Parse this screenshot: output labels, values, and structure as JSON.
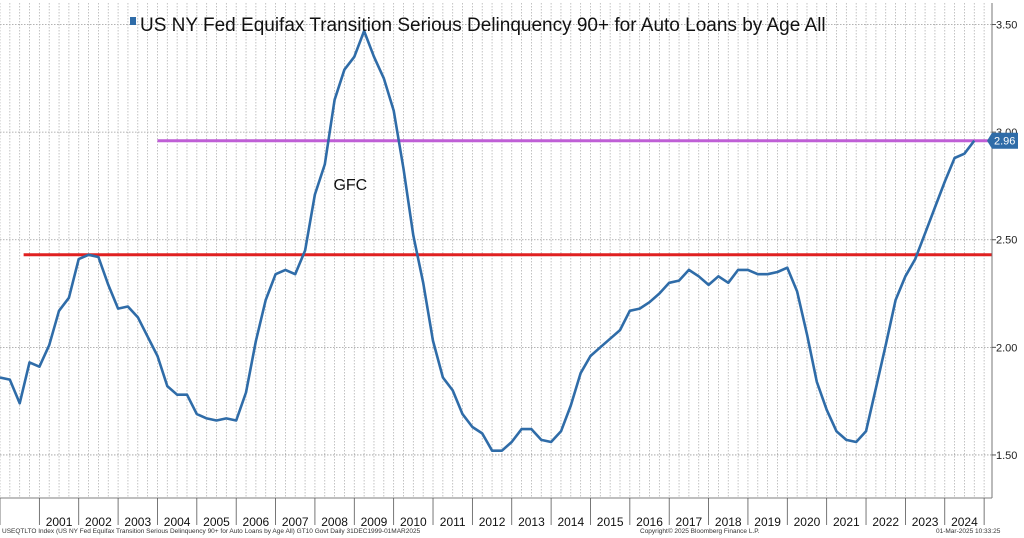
{
  "chart_data": {
    "type": "line",
    "title": "US NY Fed Equifax Transition Serious Delinquency 90+ for Auto Loans by Age All",
    "legend_position": "top",
    "xlabel": "",
    "ylabel": "",
    "x_axis": "quarterly",
    "x_range": [
      2000.0,
      2025.2
    ],
    "ylim": [
      1.3,
      3.6
    ],
    "ytick_labels": [
      "1.50",
      "2.00",
      "2.50",
      "3.00",
      "3.50"
    ],
    "ytick_values": [
      1.5,
      2.0,
      2.5,
      3.0,
      3.5
    ],
    "xtick_labels": [
      "2001",
      "2002",
      "2003",
      "2004",
      "2005",
      "2006",
      "2007",
      "2008",
      "2009",
      "2010",
      "2011",
      "2012",
      "2013",
      "2014",
      "2015",
      "2016",
      "2017",
      "2018",
      "2019",
      "2020",
      "2021",
      "2022",
      "2023",
      "2024"
    ],
    "y_axis_side": "right",
    "grid": true,
    "series": [
      {
        "name": "US NY Fed Equifax Transition Serious Delinquency 90+ for Auto Loans by Age All",
        "color": "#2f6ca8",
        "last_value_label": "2.96",
        "points": [
          [
            2000.0,
            1.86
          ],
          [
            2000.25,
            1.85
          ],
          [
            2000.5,
            1.74
          ],
          [
            2000.75,
            1.93
          ],
          [
            2001.0,
            1.91
          ],
          [
            2001.25,
            2.01
          ],
          [
            2001.5,
            2.17
          ],
          [
            2001.75,
            2.23
          ],
          [
            2002.0,
            2.41
          ],
          [
            2002.25,
            2.43
          ],
          [
            2002.5,
            2.42
          ],
          [
            2002.75,
            2.29
          ],
          [
            2003.0,
            2.18
          ],
          [
            2003.25,
            2.19
          ],
          [
            2003.5,
            2.14
          ],
          [
            2003.75,
            2.05
          ],
          [
            2004.0,
            1.96
          ],
          [
            2004.25,
            1.82
          ],
          [
            2004.5,
            1.78
          ],
          [
            2004.75,
            1.78
          ],
          [
            2005.0,
            1.69
          ],
          [
            2005.25,
            1.67
          ],
          [
            2005.5,
            1.66
          ],
          [
            2005.75,
            1.67
          ],
          [
            2006.0,
            1.66
          ],
          [
            2006.25,
            1.79
          ],
          [
            2006.5,
            2.03
          ],
          [
            2006.75,
            2.22
          ],
          [
            2007.0,
            2.34
          ],
          [
            2007.25,
            2.36
          ],
          [
            2007.5,
            2.34
          ],
          [
            2007.75,
            2.45
          ],
          [
            2008.0,
            2.71
          ],
          [
            2008.25,
            2.85
          ],
          [
            2008.5,
            3.15
          ],
          [
            2008.75,
            3.29
          ],
          [
            2009.0,
            3.35
          ],
          [
            2009.25,
            3.47
          ],
          [
            2009.5,
            3.35
          ],
          [
            2009.75,
            3.25
          ],
          [
            2010.0,
            3.1
          ],
          [
            2010.25,
            2.83
          ],
          [
            2010.5,
            2.52
          ],
          [
            2010.75,
            2.3
          ],
          [
            2011.0,
            2.03
          ],
          [
            2011.25,
            1.86
          ],
          [
            2011.5,
            1.8
          ],
          [
            2011.75,
            1.69
          ],
          [
            2012.0,
            1.63
          ],
          [
            2012.25,
            1.6
          ],
          [
            2012.5,
            1.52
          ],
          [
            2012.75,
            1.52
          ],
          [
            2013.0,
            1.56
          ],
          [
            2013.25,
            1.62
          ],
          [
            2013.5,
            1.62
          ],
          [
            2013.75,
            1.57
          ],
          [
            2014.0,
            1.56
          ],
          [
            2014.25,
            1.61
          ],
          [
            2014.5,
            1.73
          ],
          [
            2014.75,
            1.88
          ],
          [
            2015.0,
            1.96
          ],
          [
            2015.25,
            2.0
          ],
          [
            2015.5,
            2.04
          ],
          [
            2015.75,
            2.08
          ],
          [
            2016.0,
            2.17
          ],
          [
            2016.25,
            2.18
          ],
          [
            2016.5,
            2.21
          ],
          [
            2016.75,
            2.25
          ],
          [
            2017.0,
            2.3
          ],
          [
            2017.25,
            2.31
          ],
          [
            2017.5,
            2.36
          ],
          [
            2017.75,
            2.33
          ],
          [
            2018.0,
            2.29
          ],
          [
            2018.25,
            2.33
          ],
          [
            2018.5,
            2.3
          ],
          [
            2018.75,
            2.36
          ],
          [
            2019.0,
            2.36
          ],
          [
            2019.25,
            2.34
          ],
          [
            2019.5,
            2.34
          ],
          [
            2019.75,
            2.35
          ],
          [
            2020.0,
            2.37
          ],
          [
            2020.25,
            2.26
          ],
          [
            2020.5,
            2.06
          ],
          [
            2020.75,
            1.84
          ],
          [
            2021.0,
            1.71
          ],
          [
            2021.25,
            1.61
          ],
          [
            2021.5,
            1.57
          ],
          [
            2021.75,
            1.56
          ],
          [
            2022.0,
            1.61
          ],
          [
            2022.25,
            1.81
          ],
          [
            2022.5,
            2.01
          ],
          [
            2022.75,
            2.22
          ],
          [
            2023.0,
            2.33
          ],
          [
            2023.25,
            2.41
          ],
          [
            2023.5,
            2.53
          ],
          [
            2023.75,
            2.65
          ],
          [
            2024.0,
            2.77
          ],
          [
            2024.25,
            2.88
          ],
          [
            2024.5,
            2.9
          ],
          [
            2024.75,
            2.96
          ]
        ]
      }
    ],
    "reference_lines": [
      {
        "name": "red",
        "y": 2.43,
        "x_start": 2000.6,
        "x_end": 2025.2,
        "color": "#e02020"
      },
      {
        "name": "purple",
        "y": 2.96,
        "x_start": 2004.0,
        "x_end": 2025.2,
        "color": "#bf5fd6"
      }
    ],
    "annotations": [
      {
        "text": "GFC",
        "x": 2008.9,
        "y": 2.73
      }
    ]
  },
  "footer": {
    "left": "USEQTLTO Index (US NY Fed Equifax Transition Serious Delinquency 90+ for Auto Loans by Age All) GT10 Govt Daily 31DEC1999-01MAR2025",
    "center": "Copyright© 2025 Bloomberg Finance L.P.",
    "right": "01-Mar-2025 10:33:25"
  }
}
